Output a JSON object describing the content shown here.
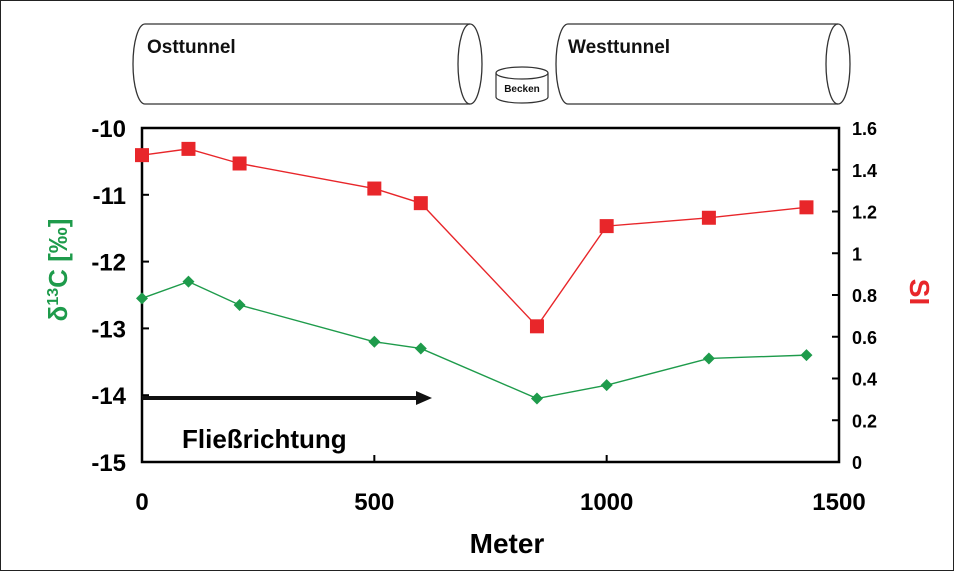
{
  "header": {
    "east_tunnel": "Osttunnel",
    "basin": "Becken",
    "west_tunnel": "Westtunnel"
  },
  "annotation": {
    "flow_direction": "Fließrichtung"
  },
  "chart_data": {
    "type": "line",
    "xlabel": "Meter",
    "xlim": [
      0,
      1500
    ],
    "x_ticks": [
      "0",
      "500",
      "1000",
      "1500"
    ],
    "y_left": {
      "label_main": "δ",
      "label_sup": "13",
      "label_tail": "C [‰]",
      "lim": [
        -15,
        -10
      ],
      "ticks": [
        "-10",
        "-11",
        "-12",
        "-13",
        "-14",
        "-15"
      ],
      "color": "#1e9b4b"
    },
    "y_right": {
      "label": "SI",
      "lim": [
        0,
        1.6
      ],
      "ticks": [
        "1.6",
        "1.4",
        "1.2",
        "1",
        "0.8",
        "0.6",
        "0.4",
        "0.2",
        "0"
      ],
      "color": "#e8262a"
    },
    "series": [
      {
        "axis": "left",
        "marker": "diamond",
        "color": "#1e9b4b",
        "x": [
          0,
          100,
          210,
          500,
          600,
          850,
          1000,
          1220,
          1430
        ],
        "values": [
          -12.55,
          -12.3,
          -12.65,
          -13.2,
          -13.3,
          -14.05,
          -13.85,
          -13.45,
          -13.4
        ]
      },
      {
        "axis": "right",
        "marker": "square",
        "color": "#e8262a",
        "x": [
          0,
          100,
          210,
          500,
          600,
          850,
          1000,
          1220,
          1430
        ],
        "values": [
          1.47,
          1.5,
          1.43,
          1.31,
          1.24,
          0.65,
          1.13,
          1.17,
          1.22
        ]
      }
    ]
  }
}
